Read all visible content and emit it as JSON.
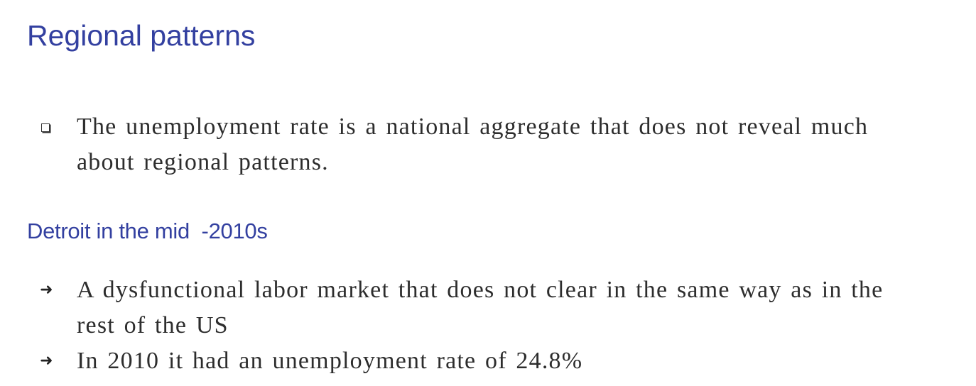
{
  "slide": {
    "title": "Regional patterns",
    "intro_bullet": {
      "icon": "square-bullet-icon",
      "text": "The unemployment rate is a national aggregate that does not reveal much about regional patterns."
    },
    "subheading": "Detroit in the mid  -2010s",
    "points": [
      {
        "icon": "arrow-right-icon",
        "text": "A dysfunctional labor market that does not clear in the same way as in the rest of the US"
      },
      {
        "icon": "arrow-right-icon",
        "text": "In 2010 it had an unemployment rate of 24.8%"
      }
    ],
    "colors": {
      "heading": "#3340a0",
      "body": "#2d2d2d"
    }
  }
}
